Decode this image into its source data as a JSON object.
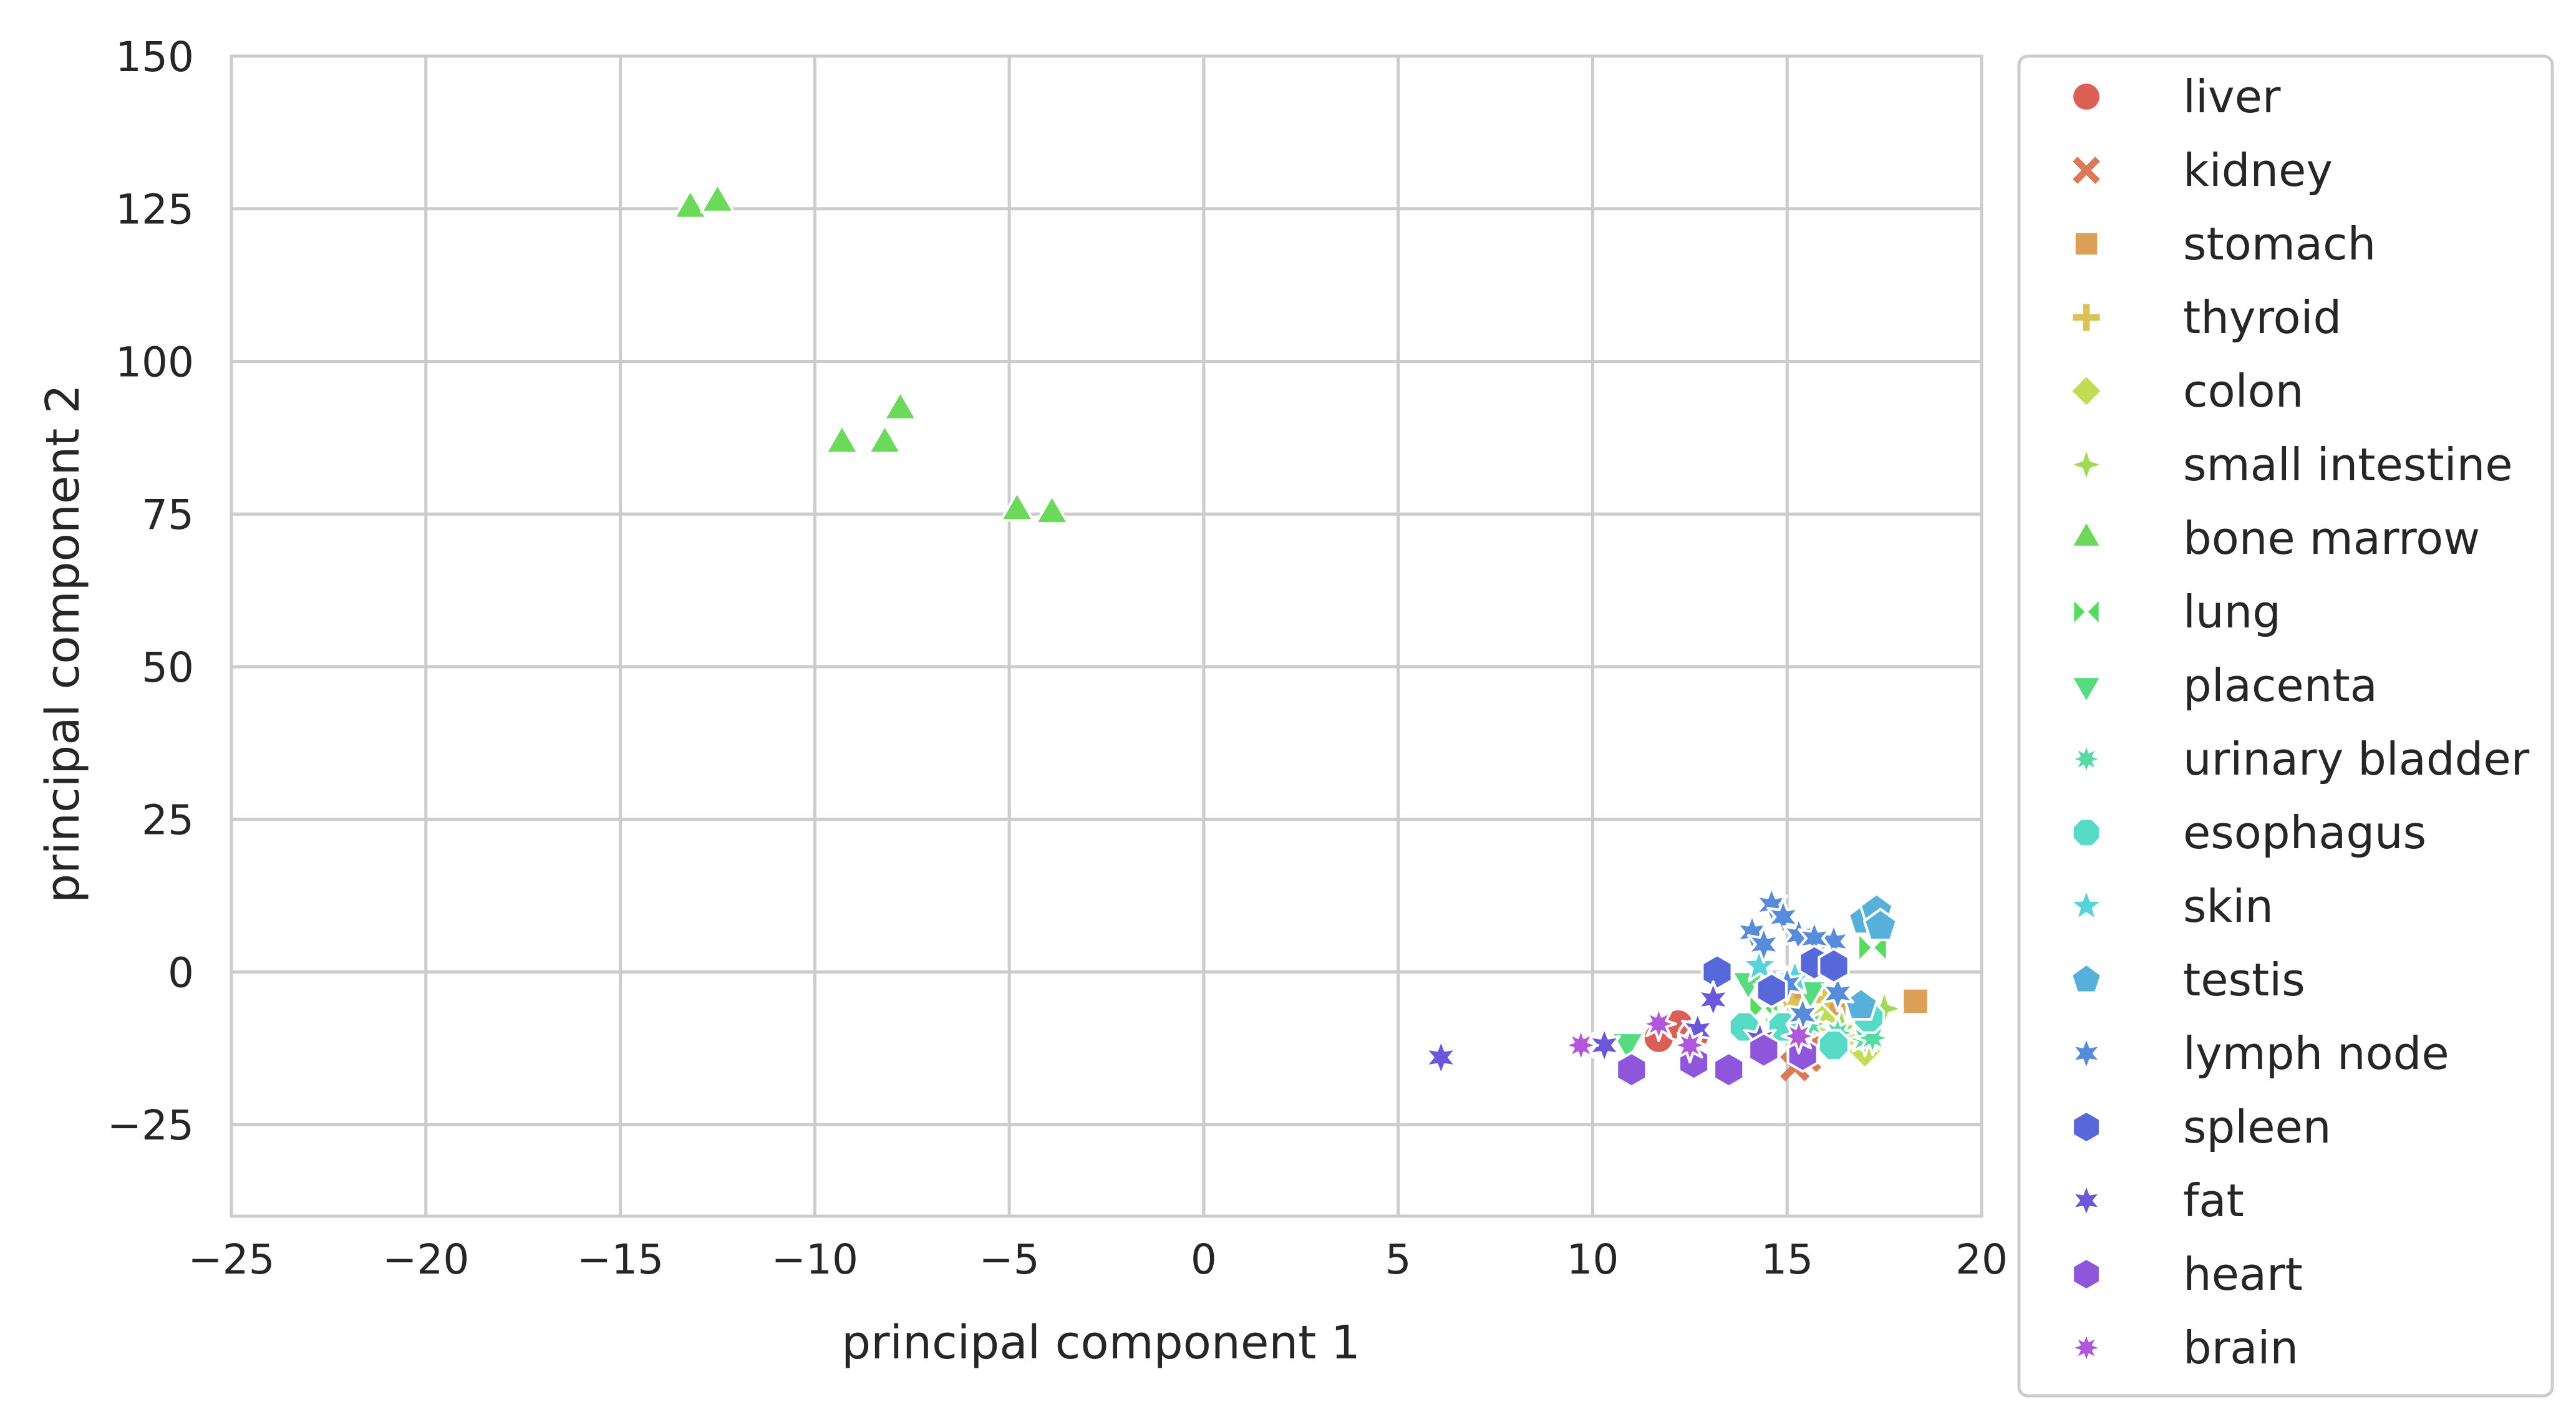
{
  "chart_data": {
    "type": "scatter",
    "title": "",
    "xlabel": "principal component 1",
    "ylabel": "principal component 2",
    "xlim": [
      -25,
      20
    ],
    "ylim": [
      -40,
      150
    ],
    "xticks": [
      -25,
      -20,
      -15,
      -10,
      -5,
      0,
      5,
      10,
      15,
      20
    ],
    "xtick_labels": [
      "−25",
      "−20",
      "−15",
      "−10",
      "−5",
      "0",
      "5",
      "10",
      "15",
      "20"
    ],
    "yticks": [
      -25,
      0,
      25,
      50,
      75,
      100,
      125,
      150
    ],
    "ytick_labels": [
      "−25",
      "0",
      "25",
      "50",
      "75",
      "100",
      "125",
      "150"
    ],
    "grid": true,
    "legend_position": "outside-right",
    "series": [
      {
        "name": "liver",
        "marker": "circle",
        "color": "#db5f57",
        "points": [
          [
            11.7,
            -10.8
          ],
          [
            12.2,
            -8.6
          ],
          [
            12.6,
            -10.5
          ]
        ]
      },
      {
        "name": "kidney",
        "marker": "x",
        "color": "#db7a57",
        "points": [
          [
            15.2,
            -15.5
          ],
          [
            15.5,
            -14.0
          ],
          [
            15.8,
            -11.5
          ]
        ]
      },
      {
        "name": "stomach",
        "marker": "square",
        "color": "#db9f57",
        "points": [
          [
            18.3,
            -4.8
          ],
          [
            15.3,
            -5.5
          ],
          [
            16.2,
            -7.0
          ]
        ]
      },
      {
        "name": "thyroid",
        "marker": "plus",
        "color": "#dbc257",
        "points": [
          [
            15.1,
            -5.0
          ],
          [
            15.6,
            -6.5
          ],
          [
            16.0,
            -4.5
          ]
        ]
      },
      {
        "name": "colon",
        "marker": "diamond",
        "color": "#c4db57",
        "points": [
          [
            17.0,
            -13.0
          ],
          [
            16.5,
            -10.5
          ],
          [
            15.9,
            -8.0
          ]
        ]
      },
      {
        "name": "small intestine",
        "marker": "star4",
        "color": "#a0db57",
        "points": [
          [
            17.5,
            -6.0
          ],
          [
            17.0,
            -7.5
          ],
          [
            16.4,
            -9.0
          ]
        ]
      },
      {
        "name": "bone marrow",
        "marker": "triangle-up",
        "color": "#6bd95a",
        "points": [
          [
            -13.2,
            125.0
          ],
          [
            -12.5,
            126.0
          ],
          [
            -9.3,
            86.5
          ],
          [
            -8.2,
            86.5
          ],
          [
            -7.8,
            92.0
          ],
          [
            -4.8,
            75.5
          ],
          [
            -3.9,
            75.0
          ]
        ]
      },
      {
        "name": "lung",
        "marker": "bowtie",
        "color": "#57db5f",
        "points": [
          [
            17.2,
            4.0
          ],
          [
            14.4,
            -6.0
          ],
          [
            15.0,
            -8.5
          ]
        ]
      },
      {
        "name": "placenta",
        "marker": "triangle-down",
        "color": "#57db80",
        "points": [
          [
            10.9,
            -11.5
          ],
          [
            14.0,
            -1.5
          ],
          [
            14.8,
            -9.0
          ],
          [
            15.6,
            -3.0
          ]
        ]
      },
      {
        "name": "urinary bladder",
        "marker": "star8",
        "color": "#57dba4",
        "points": [
          [
            17.0,
            -11.0
          ],
          [
            16.3,
            -10.0
          ],
          [
            15.6,
            -8.5
          ],
          [
            17.2,
            -10.8
          ]
        ]
      },
      {
        "name": "esophagus",
        "marker": "octagon",
        "color": "#57dbc7",
        "points": [
          [
            13.9,
            -9.0
          ],
          [
            14.9,
            -9.0
          ],
          [
            16.2,
            -12.0
          ],
          [
            17.1,
            -7.5
          ]
        ]
      },
      {
        "name": "skin",
        "marker": "star5",
        "color": "#57d3db",
        "points": [
          [
            14.3,
            1.0
          ],
          [
            14.6,
            -3.0
          ],
          [
            15.2,
            -1.0
          ]
        ]
      },
      {
        "name": "testis",
        "marker": "pentagon",
        "color": "#57b0db",
        "points": [
          [
            17.0,
            8.5
          ],
          [
            17.3,
            10.0
          ],
          [
            17.4,
            7.5
          ],
          [
            16.9,
            -5.5
          ]
        ]
      },
      {
        "name": "lymph node",
        "marker": "star6",
        "color": "#578cdb",
        "points": [
          [
            14.1,
            6.5
          ],
          [
            14.6,
            11.0
          ],
          [
            14.9,
            9.0
          ],
          [
            14.4,
            4.5
          ],
          [
            15.3,
            6.0
          ],
          [
            16.2,
            5.0
          ],
          [
            15.0,
            -2.0
          ],
          [
            15.7,
            5.5
          ],
          [
            16.3,
            -3.5
          ],
          [
            15.4,
            -7.0
          ],
          [
            15.8,
            1.5
          ]
        ]
      },
      {
        "name": "spleen",
        "marker": "hexagon",
        "color": "#5768db",
        "points": [
          [
            13.2,
            0.0
          ],
          [
            15.7,
            1.5
          ],
          [
            16.2,
            1.0
          ],
          [
            14.6,
            -3.0
          ]
        ]
      },
      {
        "name": "fat",
        "marker": "star6",
        "color": "#6a57db",
        "points": [
          [
            6.1,
            -14.0
          ],
          [
            10.3,
            -12.0
          ],
          [
            13.1,
            -4.5
          ],
          [
            12.7,
            -9.5
          ],
          [
            14.3,
            -11.0
          ]
        ]
      },
      {
        "name": "heart",
        "marker": "hexagon",
        "color": "#8e57db",
        "points": [
          [
            11.0,
            -16.0
          ],
          [
            12.6,
            -14.8
          ],
          [
            13.5,
            -16.0
          ],
          [
            14.4,
            -12.8
          ],
          [
            15.4,
            -13.5
          ]
        ]
      },
      {
        "name": "brain",
        "marker": "star8",
        "color": "#b157db",
        "points": [
          [
            9.7,
            -12.0
          ],
          [
            11.7,
            -8.5
          ],
          [
            12.5,
            -12.0
          ],
          [
            15.3,
            -10.5
          ]
        ]
      }
    ]
  }
}
